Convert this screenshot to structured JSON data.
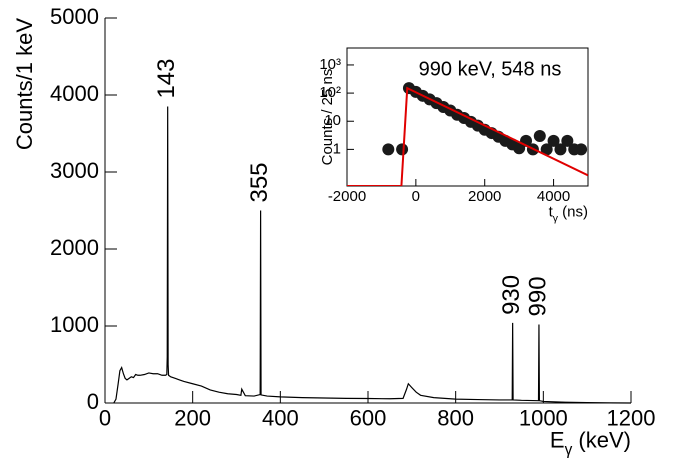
{
  "chart_data": [
    {
      "type": "line",
      "y_label": "Counts/1 keV",
      "x_label": [
        "E",
        "γ",
        " (keV)"
      ],
      "xlim": [
        0,
        1200
      ],
      "xticks": [
        0,
        200,
        400,
        600,
        800,
        1000,
        1200
      ],
      "ylim": [
        0,
        5000
      ],
      "yticks": [
        0,
        1000,
        2000,
        3000,
        4000,
        5000
      ],
      "annotations": [
        {
          "text": "143",
          "x": 143
        },
        {
          "text": "355",
          "x": 355
        },
        {
          "text": "930",
          "x": 930
        },
        {
          "text": "990",
          "x": 990
        }
      ],
      "series": [
        {
          "color": "#000000",
          "x": [
            20,
            25,
            30,
            34,
            38,
            42,
            46,
            50,
            55,
            60,
            65,
            70,
            75,
            80,
            90,
            100,
            110,
            120,
            130,
            138,
            141,
            142,
            143,
            144,
            145,
            150,
            160,
            170,
            180,
            200,
            220,
            240,
            260,
            280,
            300,
            310,
            312,
            320,
            340,
            354,
            355,
            356,
            370,
            400,
            450,
            500,
            550,
            600,
            650,
            680,
            688,
            692,
            700,
            710,
            720,
            750,
            800,
            850,
            900,
            929,
            930,
            931,
            950,
            989,
            990,
            991,
            1000,
            1050,
            1100,
            1150,
            1200
          ],
          "values": [
            0,
            50,
            250,
            420,
            460,
            380,
            320,
            300,
            320,
            340,
            330,
            370,
            360,
            360,
            370,
            390,
            380,
            380,
            360,
            360,
            370,
            600,
            3850,
            500,
            360,
            340,
            320,
            300,
            280,
            250,
            220,
            170,
            140,
            120,
            110,
            100,
            180,
            95,
            90,
            110,
            2500,
            105,
            90,
            80,
            70,
            65,
            60,
            58,
            55,
            60,
            180,
            250,
            200,
            140,
            100,
            70,
            50,
            45,
            40,
            40,
            1040,
            40,
            35,
            30,
            1020,
            30,
            20,
            10,
            5,
            2,
            0
          ]
        }
      ]
    },
    {
      "type": "scatter",
      "title": "990 keV, 548 ns",
      "y_label": "Counts / 25 ns",
      "x_label": [
        "t",
        "γ",
        " (ns)"
      ],
      "xlim": [
        -2000,
        5000
      ],
      "xticks": [
        -2000,
        0,
        2000,
        4000
      ],
      "ylim": [
        0.05,
        4000
      ],
      "ylog": true,
      "yticks": [
        1,
        10,
        {
          "value": 100,
          "label": "10²"
        },
        {
          "value": 1000,
          "label": "10³"
        }
      ],
      "series": [
        {
          "mode": "markers",
          "color": "#1a1a1a",
          "x": [
            -800,
            -400,
            -200,
            0,
            200,
            400,
            600,
            800,
            1000,
            1200,
            1400,
            1600,
            1800,
            2000,
            2200,
            2400,
            2600,
            2800,
            3000,
            3200,
            3400,
            3600,
            3800,
            4000,
            4200,
            4400,
            4600,
            4800
          ],
          "values": [
            1,
            1,
            150,
            110,
            80,
            60,
            44,
            32,
            24,
            17,
            13,
            9.5,
            7,
            5,
            3.8,
            2.8,
            2,
            1.5,
            1.1,
            2,
            1,
            3,
            1,
            2,
            1,
            2,
            1,
            1
          ]
        },
        {
          "mode": "line",
          "color": "#e00000",
          "x": [
            -2000,
            -420,
            -250,
            5000
          ],
          "values": [
            0.05,
            0.05,
            150,
            0.12
          ]
        }
      ]
    }
  ]
}
